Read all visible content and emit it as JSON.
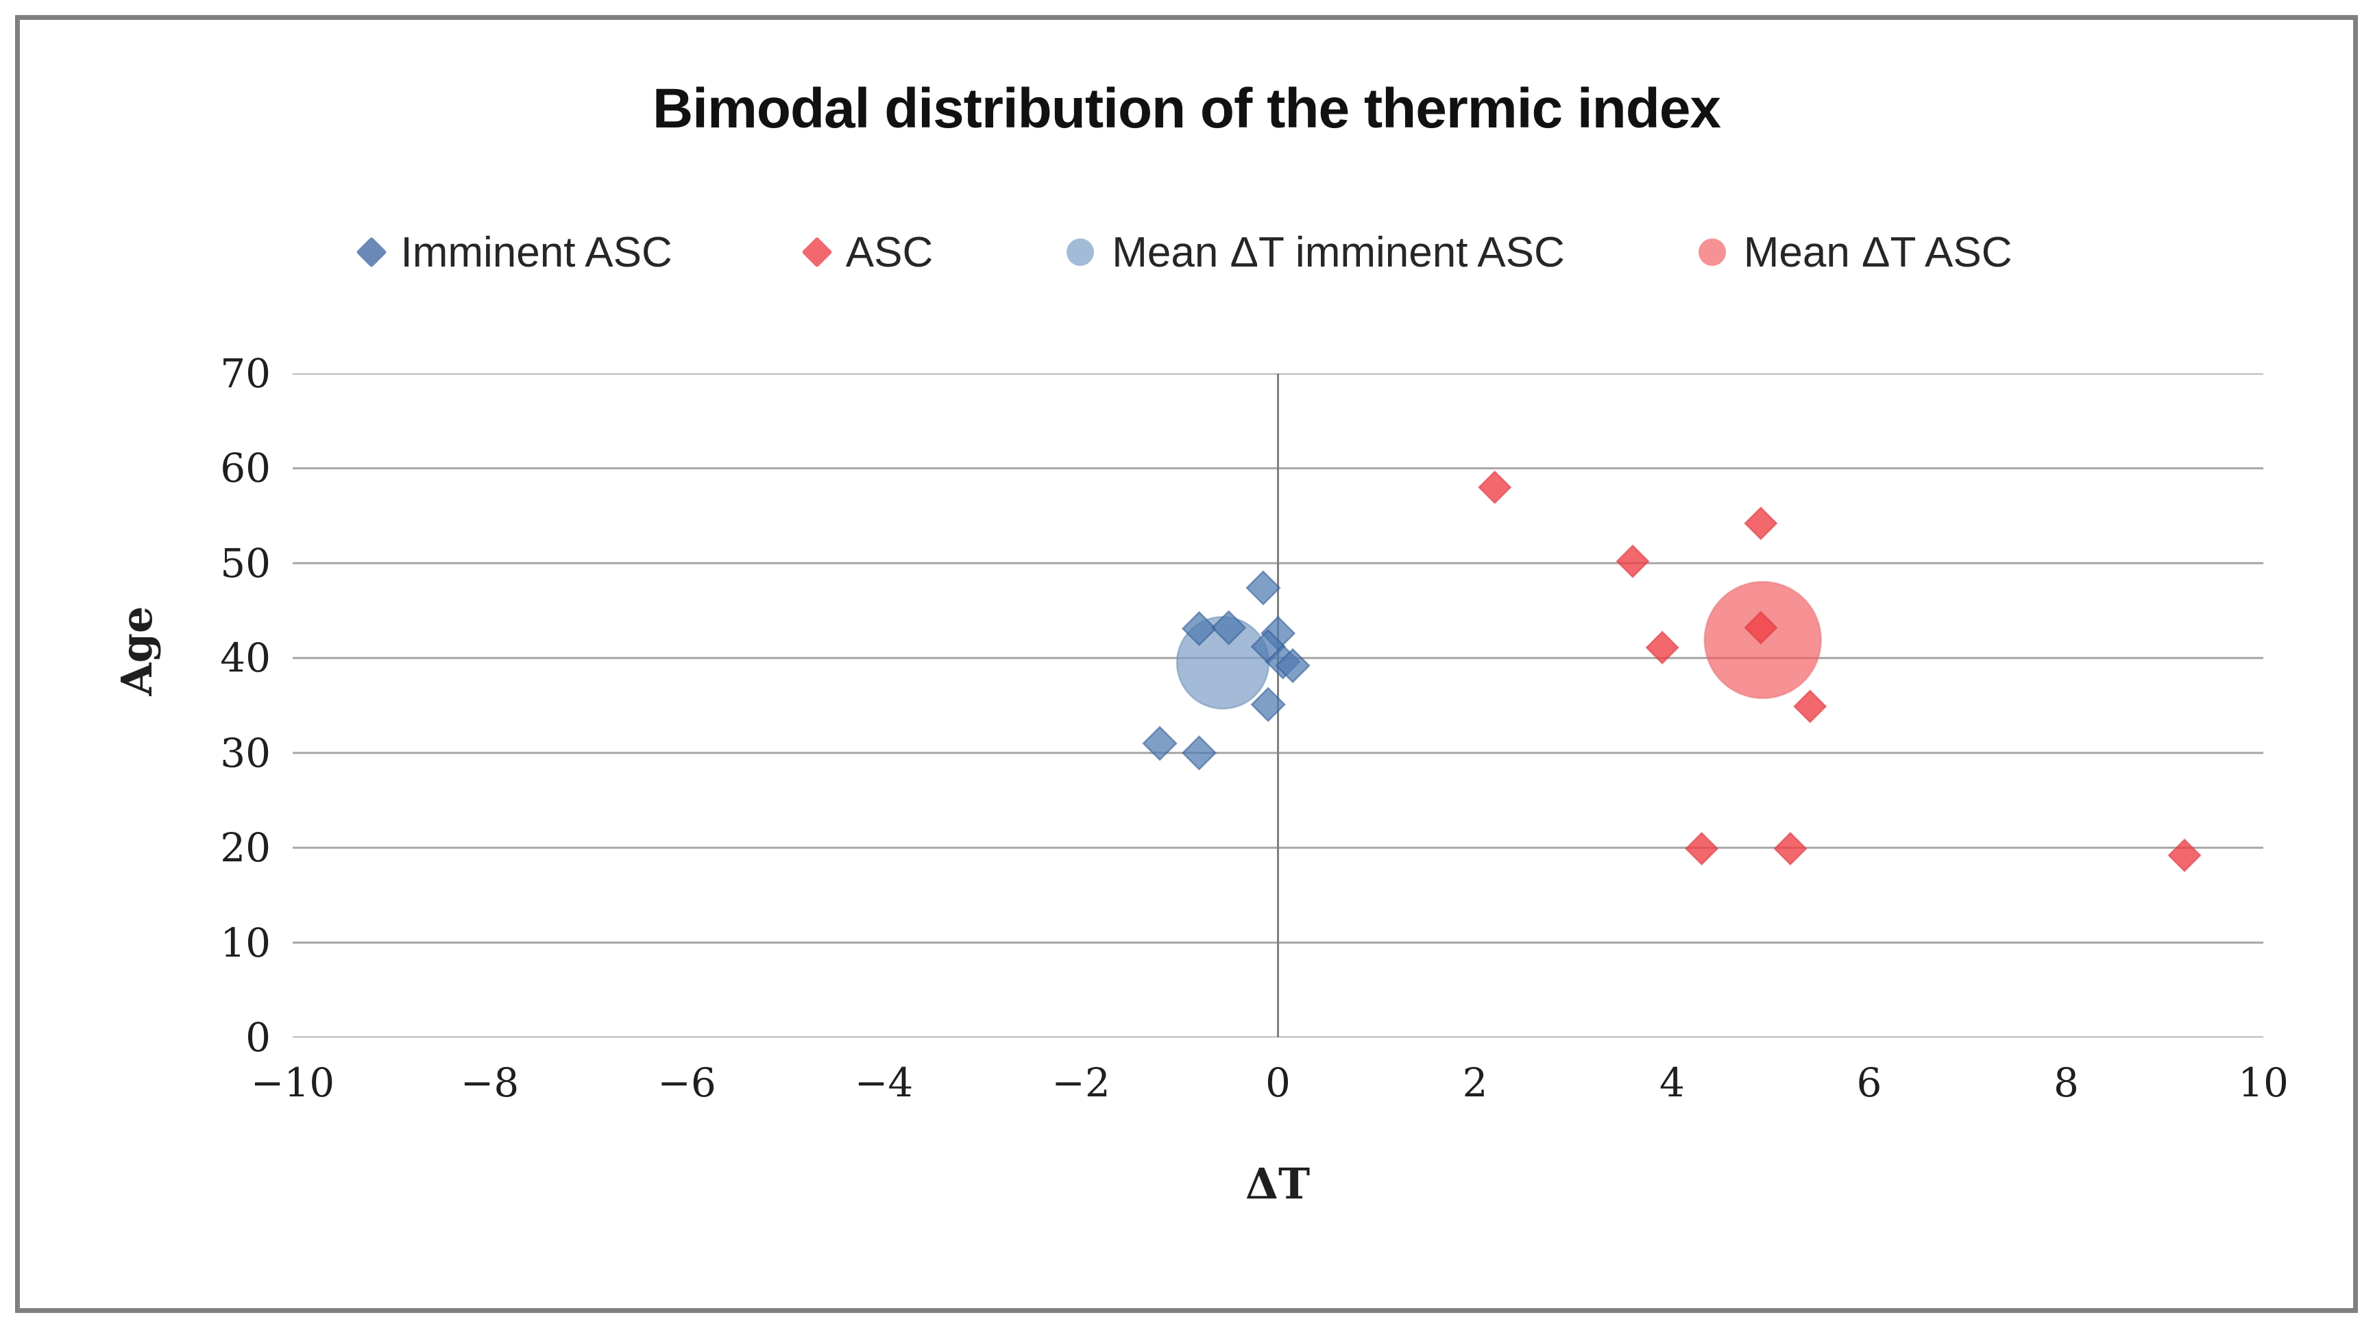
{
  "title": "Bimodal distribution of the thermic index",
  "legend": {
    "items": [
      {
        "label": "Imminent ASC",
        "marker": "diamond",
        "color": "#6a89b7"
      },
      {
        "label": "ASC",
        "marker": "diamond",
        "color": "#f26870"
      },
      {
        "label": "Mean ΔT imminent ASC",
        "marker": "circle",
        "color": "#a2bbd6"
      },
      {
        "label": "Mean ΔT ASC",
        "marker": "circle",
        "color": "#f69294"
      }
    ]
  },
  "chart_data": {
    "type": "scatter",
    "title": "Bimodal distribution of the thermic index",
    "xlabel": "ΔT",
    "ylabel": "Age",
    "xlim": [
      -10,
      10
    ],
    "ylim": [
      0,
      70
    ],
    "grid": "horizontal-only",
    "legend_position": "top",
    "axis_line_x": 0,
    "gridline_color": "#a6a6a6",
    "axis_line_color": "#808080",
    "xticks": [
      {
        "v": -10,
        "label": "−10"
      },
      {
        "v": -8,
        "label": "−8"
      },
      {
        "v": -6,
        "label": "−6"
      },
      {
        "v": -4,
        "label": "−4"
      },
      {
        "v": -2,
        "label": "−2"
      },
      {
        "v": 0,
        "label": "0"
      },
      {
        "v": 2,
        "label": "2"
      },
      {
        "v": 4,
        "label": "4"
      },
      {
        "v": 6,
        "label": "6"
      },
      {
        "v": 8,
        "label": "8"
      },
      {
        "v": 10,
        "label": "10"
      }
    ],
    "yticks": [
      {
        "v": 0,
        "label": "0"
      },
      {
        "v": 10,
        "label": "10"
      },
      {
        "v": 20,
        "label": "20"
      },
      {
        "v": 30,
        "label": "30"
      },
      {
        "v": 40,
        "label": "40"
      },
      {
        "v": 50,
        "label": "50"
      },
      {
        "v": 60,
        "label": "60"
      },
      {
        "v": 70,
        "label": "70"
      }
    ],
    "series": [
      {
        "name": "Imminent ASC",
        "marker": "diamond",
        "fill": "#4f7ab0",
        "fill_opacity": 0.72,
        "stroke": "#2f5a94",
        "marker_px": 24,
        "points": [
          [
            -0.15,
            47.4
          ],
          [
            -0.8,
            43.1
          ],
          [
            -0.5,
            43.2
          ],
          [
            0.0,
            42.6
          ],
          [
            -0.1,
            41.2
          ],
          [
            0.05,
            39.6
          ],
          [
            0.15,
            39.2
          ],
          [
            -0.1,
            35.1
          ],
          [
            -1.2,
            31.0
          ],
          [
            -0.8,
            30.0
          ]
        ]
      },
      {
        "name": "ASC",
        "marker": "diamond",
        "fill": "#ef3e44",
        "fill_opacity": 0.78,
        "stroke": "#d63a3f",
        "marker_px": 23,
        "points": [
          [
            2.2,
            58.0
          ],
          [
            4.9,
            54.2
          ],
          [
            3.6,
            50.2
          ],
          [
            4.9,
            43.2
          ],
          [
            3.9,
            41.1
          ],
          [
            5.4,
            34.9
          ],
          [
            4.3,
            19.9
          ],
          [
            5.2,
            19.9
          ],
          [
            9.2,
            19.2
          ]
        ]
      },
      {
        "name": "Mean ΔT imminent ASC",
        "marker": "circle",
        "fill": "#7fa1c6",
        "fill_opacity": 0.72,
        "stroke": "#6d8fb5",
        "marker_px": 67,
        "points": [
          [
            -0.56,
            39.5
          ]
        ]
      },
      {
        "name": "Mean ΔT ASC",
        "marker": "circle",
        "fill": "#f1575b",
        "fill_opacity": 0.65,
        "stroke": "#e3797c",
        "marker_px": 85,
        "points": [
          [
            4.92,
            41.9
          ]
        ]
      }
    ]
  }
}
